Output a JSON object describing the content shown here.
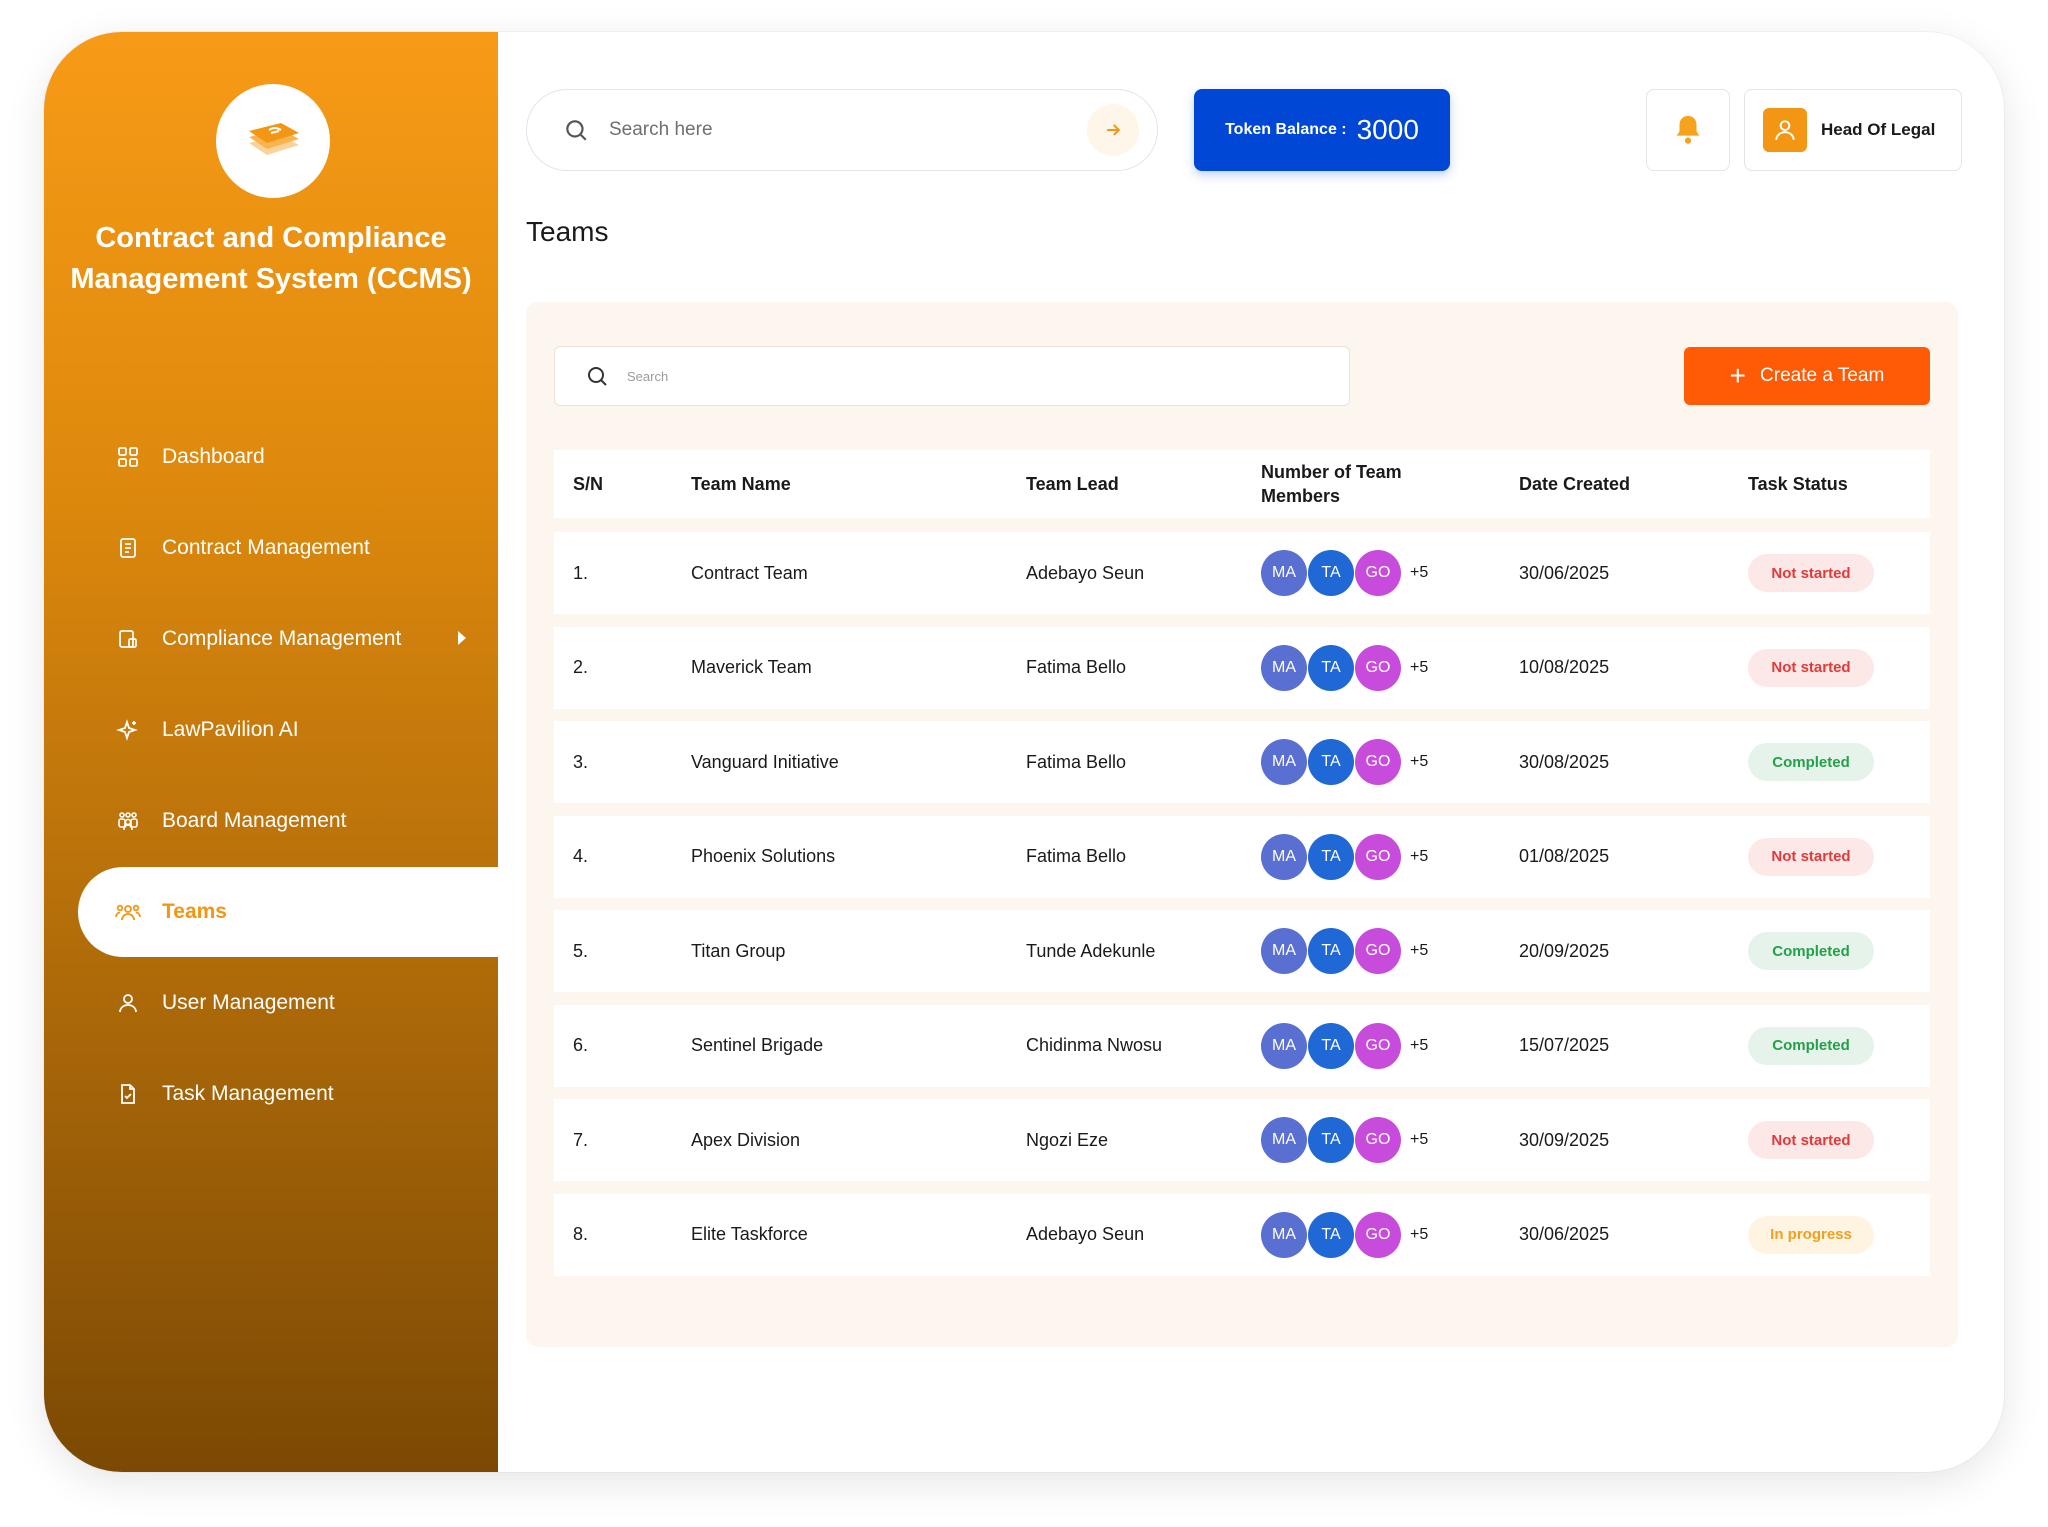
{
  "app": {
    "title": "Contract and Compliance Management System (CCMS)"
  },
  "sidebar": {
    "items": [
      {
        "label": "Dashboard",
        "icon": "grid-icon"
      },
      {
        "label": "Contract Management",
        "icon": "document-icon"
      },
      {
        "label": "Compliance Management",
        "icon": "compliance-icon",
        "has_submenu": true
      },
      {
        "label": "LawPavilion AI",
        "icon": "sparkle-icon"
      },
      {
        "label": "Board Management",
        "icon": "group-icon"
      },
      {
        "label": "Teams",
        "icon": "team-icon",
        "active": true
      },
      {
        "label": "User Management",
        "icon": "user-icon"
      },
      {
        "label": "Task Management",
        "icon": "task-icon"
      }
    ]
  },
  "header": {
    "search_placeholder": "Search here",
    "token_label": "Token Balance :",
    "token_value": "3000",
    "user_name": "Head Of Legal"
  },
  "page": {
    "title": "Teams",
    "search_placeholder": "Search",
    "create_button": "Create a Team"
  },
  "table": {
    "headers": {
      "sn": "S/N",
      "team_name": "Team Name",
      "team_lead": "Team Lead",
      "members": "Number of Team Members",
      "date": "Date Created",
      "status": "Task Status"
    },
    "rows": [
      {
        "sn": "1.",
        "name": "Contract Team",
        "lead": "Adebayo Seun",
        "avatars": [
          "MA",
          "TA",
          "GO"
        ],
        "more": "+5",
        "date": "30/06/2025",
        "status": "Not started"
      },
      {
        "sn": "2.",
        "name": "Maverick Team",
        "lead": "Fatima Bello",
        "avatars": [
          "MA",
          "TA",
          "GO"
        ],
        "more": "+5",
        "date": "10/08/2025",
        "status": "Not started"
      },
      {
        "sn": "3.",
        "name": "Vanguard Initiative",
        "lead": "Fatima Bello",
        "avatars": [
          "MA",
          "TA",
          "GO"
        ],
        "more": "+5",
        "date": "30/08/2025",
        "status": "Completed"
      },
      {
        "sn": "4.",
        "name": "Phoenix Solutions",
        "lead": "Fatima Bello",
        "avatars": [
          "MA",
          "TA",
          "GO"
        ],
        "more": "+5",
        "date": "01/08/2025",
        "status": "Not started"
      },
      {
        "sn": "5.",
        "name": "Titan Group",
        "lead": "Tunde Adekunle",
        "avatars": [
          "MA",
          "TA",
          "GO"
        ],
        "more": "+5",
        "date": "20/09/2025",
        "status": "Completed"
      },
      {
        "sn": "6.",
        "name": "Sentinel Brigade",
        "lead": "Chidinma Nwosu",
        "avatars": [
          "MA",
          "TA",
          "GO"
        ],
        "more": "+5",
        "date": "15/07/2025",
        "status": "Completed"
      },
      {
        "sn": "7.",
        "name": "Apex Division",
        "lead": "Ngozi Eze",
        "avatars": [
          "MA",
          "TA",
          "GO"
        ],
        "more": "+5",
        "date": "30/09/2025",
        "status": "Not started"
      },
      {
        "sn": "8.",
        "name": "Elite Taskforce",
        "lead": "Adebayo Seun",
        "avatars": [
          "MA",
          "TA",
          "GO"
        ],
        "more": "+5",
        "date": "30/06/2025",
        "status": "In progress"
      }
    ]
  },
  "colors": {
    "accent": "#f39614",
    "create_button": "#ff5a06",
    "token_bg": "#0047d6",
    "not_started": "#e23a3a",
    "completed": "#25a04a",
    "in_progress": "#f0a01e"
  }
}
